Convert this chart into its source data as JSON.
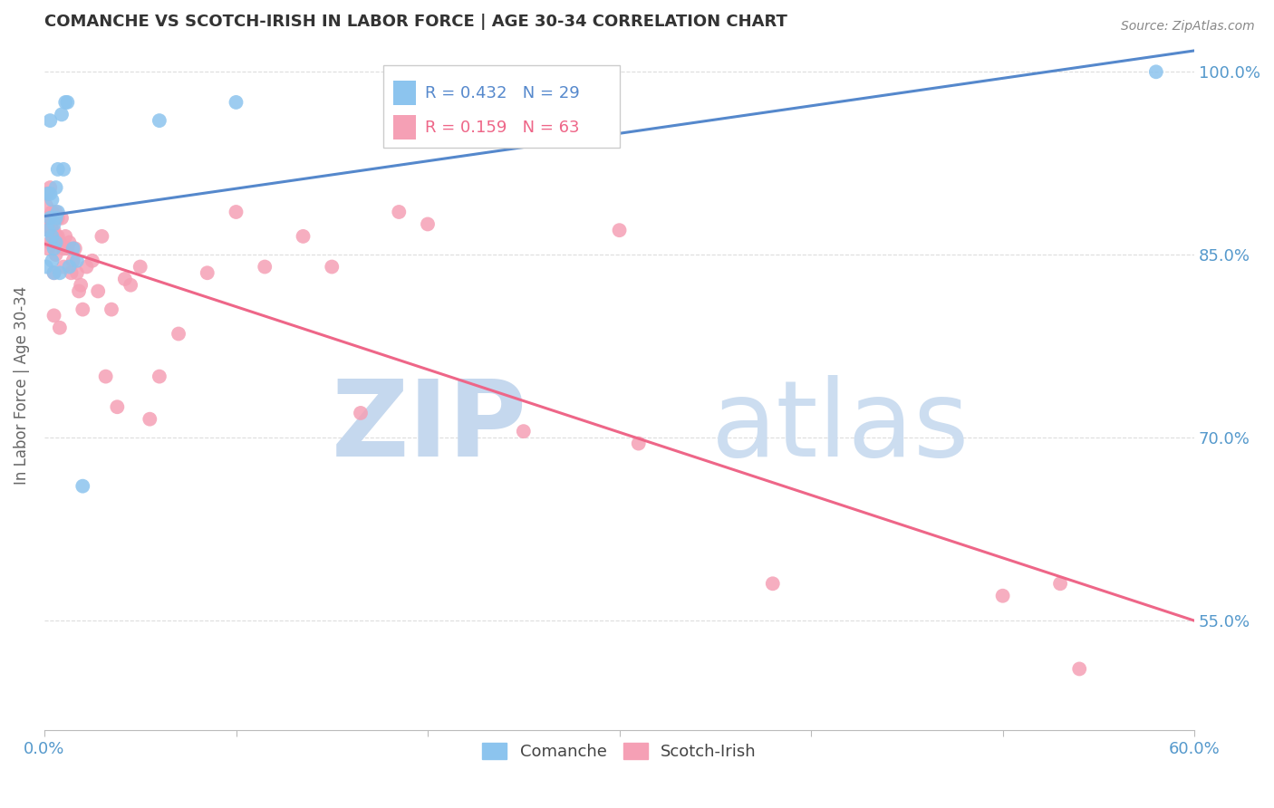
{
  "title": "COMANCHE VS SCOTCH-IRISH IN LABOR FORCE | AGE 30-34 CORRELATION CHART",
  "source": "Source: ZipAtlas.com",
  "ylabel": "In Labor Force | Age 30-34",
  "xmin": 0.0,
  "xmax": 0.6,
  "ymin": 0.46,
  "ymax": 1.025,
  "yticks": [
    0.55,
    0.7,
    0.85,
    1.0
  ],
  "ytick_labels": [
    "55.0%",
    "70.0%",
    "85.0%",
    "100.0%"
  ],
  "legend_R1": "0.432",
  "legend_N1": "29",
  "legend_R2": "0.159",
  "legend_N2": "63",
  "color_comanche": "#8CC4EE",
  "color_scotch": "#F5A0B5",
  "color_trendline_comanche": "#5588CC",
  "color_trendline_scotch": "#EE6688",
  "comanche_x": [
    0.001,
    0.002,
    0.002,
    0.003,
    0.003,
    0.003,
    0.004,
    0.004,
    0.004,
    0.005,
    0.005,
    0.005,
    0.006,
    0.006,
    0.006,
    0.007,
    0.007,
    0.008,
    0.009,
    0.01,
    0.011,
    0.012,
    0.013,
    0.015,
    0.017,
    0.02,
    0.06,
    0.1,
    0.58
  ],
  "comanche_y": [
    0.84,
    0.87,
    0.9,
    0.88,
    0.9,
    0.96,
    0.845,
    0.865,
    0.895,
    0.835,
    0.855,
    0.875,
    0.86,
    0.88,
    0.905,
    0.885,
    0.92,
    0.835,
    0.965,
    0.92,
    0.975,
    0.975,
    0.84,
    0.855,
    0.845,
    0.66,
    0.96,
    0.975,
    1.0
  ],
  "scotch_x": [
    0.001,
    0.001,
    0.001,
    0.002,
    0.002,
    0.002,
    0.003,
    0.003,
    0.003,
    0.004,
    0.004,
    0.004,
    0.005,
    0.005,
    0.005,
    0.006,
    0.006,
    0.006,
    0.007,
    0.007,
    0.008,
    0.008,
    0.009,
    0.01,
    0.01,
    0.011,
    0.012,
    0.013,
    0.014,
    0.015,
    0.016,
    0.017,
    0.018,
    0.019,
    0.02,
    0.022,
    0.025,
    0.028,
    0.03,
    0.032,
    0.035,
    0.038,
    0.042,
    0.045,
    0.05,
    0.055,
    0.06,
    0.07,
    0.085,
    0.1,
    0.115,
    0.135,
    0.15,
    0.165,
    0.185,
    0.2,
    0.25,
    0.3,
    0.31,
    0.38,
    0.5,
    0.53,
    0.54
  ],
  "scotch_y": [
    0.88,
    0.89,
    0.9,
    0.855,
    0.87,
    0.88,
    0.86,
    0.875,
    0.905,
    0.86,
    0.87,
    0.885,
    0.8,
    0.835,
    0.87,
    0.85,
    0.865,
    0.885,
    0.865,
    0.88,
    0.79,
    0.86,
    0.88,
    0.84,
    0.855,
    0.865,
    0.855,
    0.86,
    0.835,
    0.845,
    0.855,
    0.835,
    0.82,
    0.825,
    0.805,
    0.84,
    0.845,
    0.82,
    0.865,
    0.75,
    0.805,
    0.725,
    0.83,
    0.825,
    0.84,
    0.715,
    0.75,
    0.785,
    0.835,
    0.885,
    0.84,
    0.865,
    0.84,
    0.72,
    0.885,
    0.875,
    0.705,
    0.87,
    0.695,
    0.58,
    0.57,
    0.58,
    0.51
  ],
  "background_color": "#FFFFFF",
  "grid_color": "#DDDDDD",
  "title_color": "#333333",
  "axis_color": "#5599CC",
  "watermark_zip_color": "#C5D8EE",
  "watermark_atlas_color": "#CCDDF0"
}
